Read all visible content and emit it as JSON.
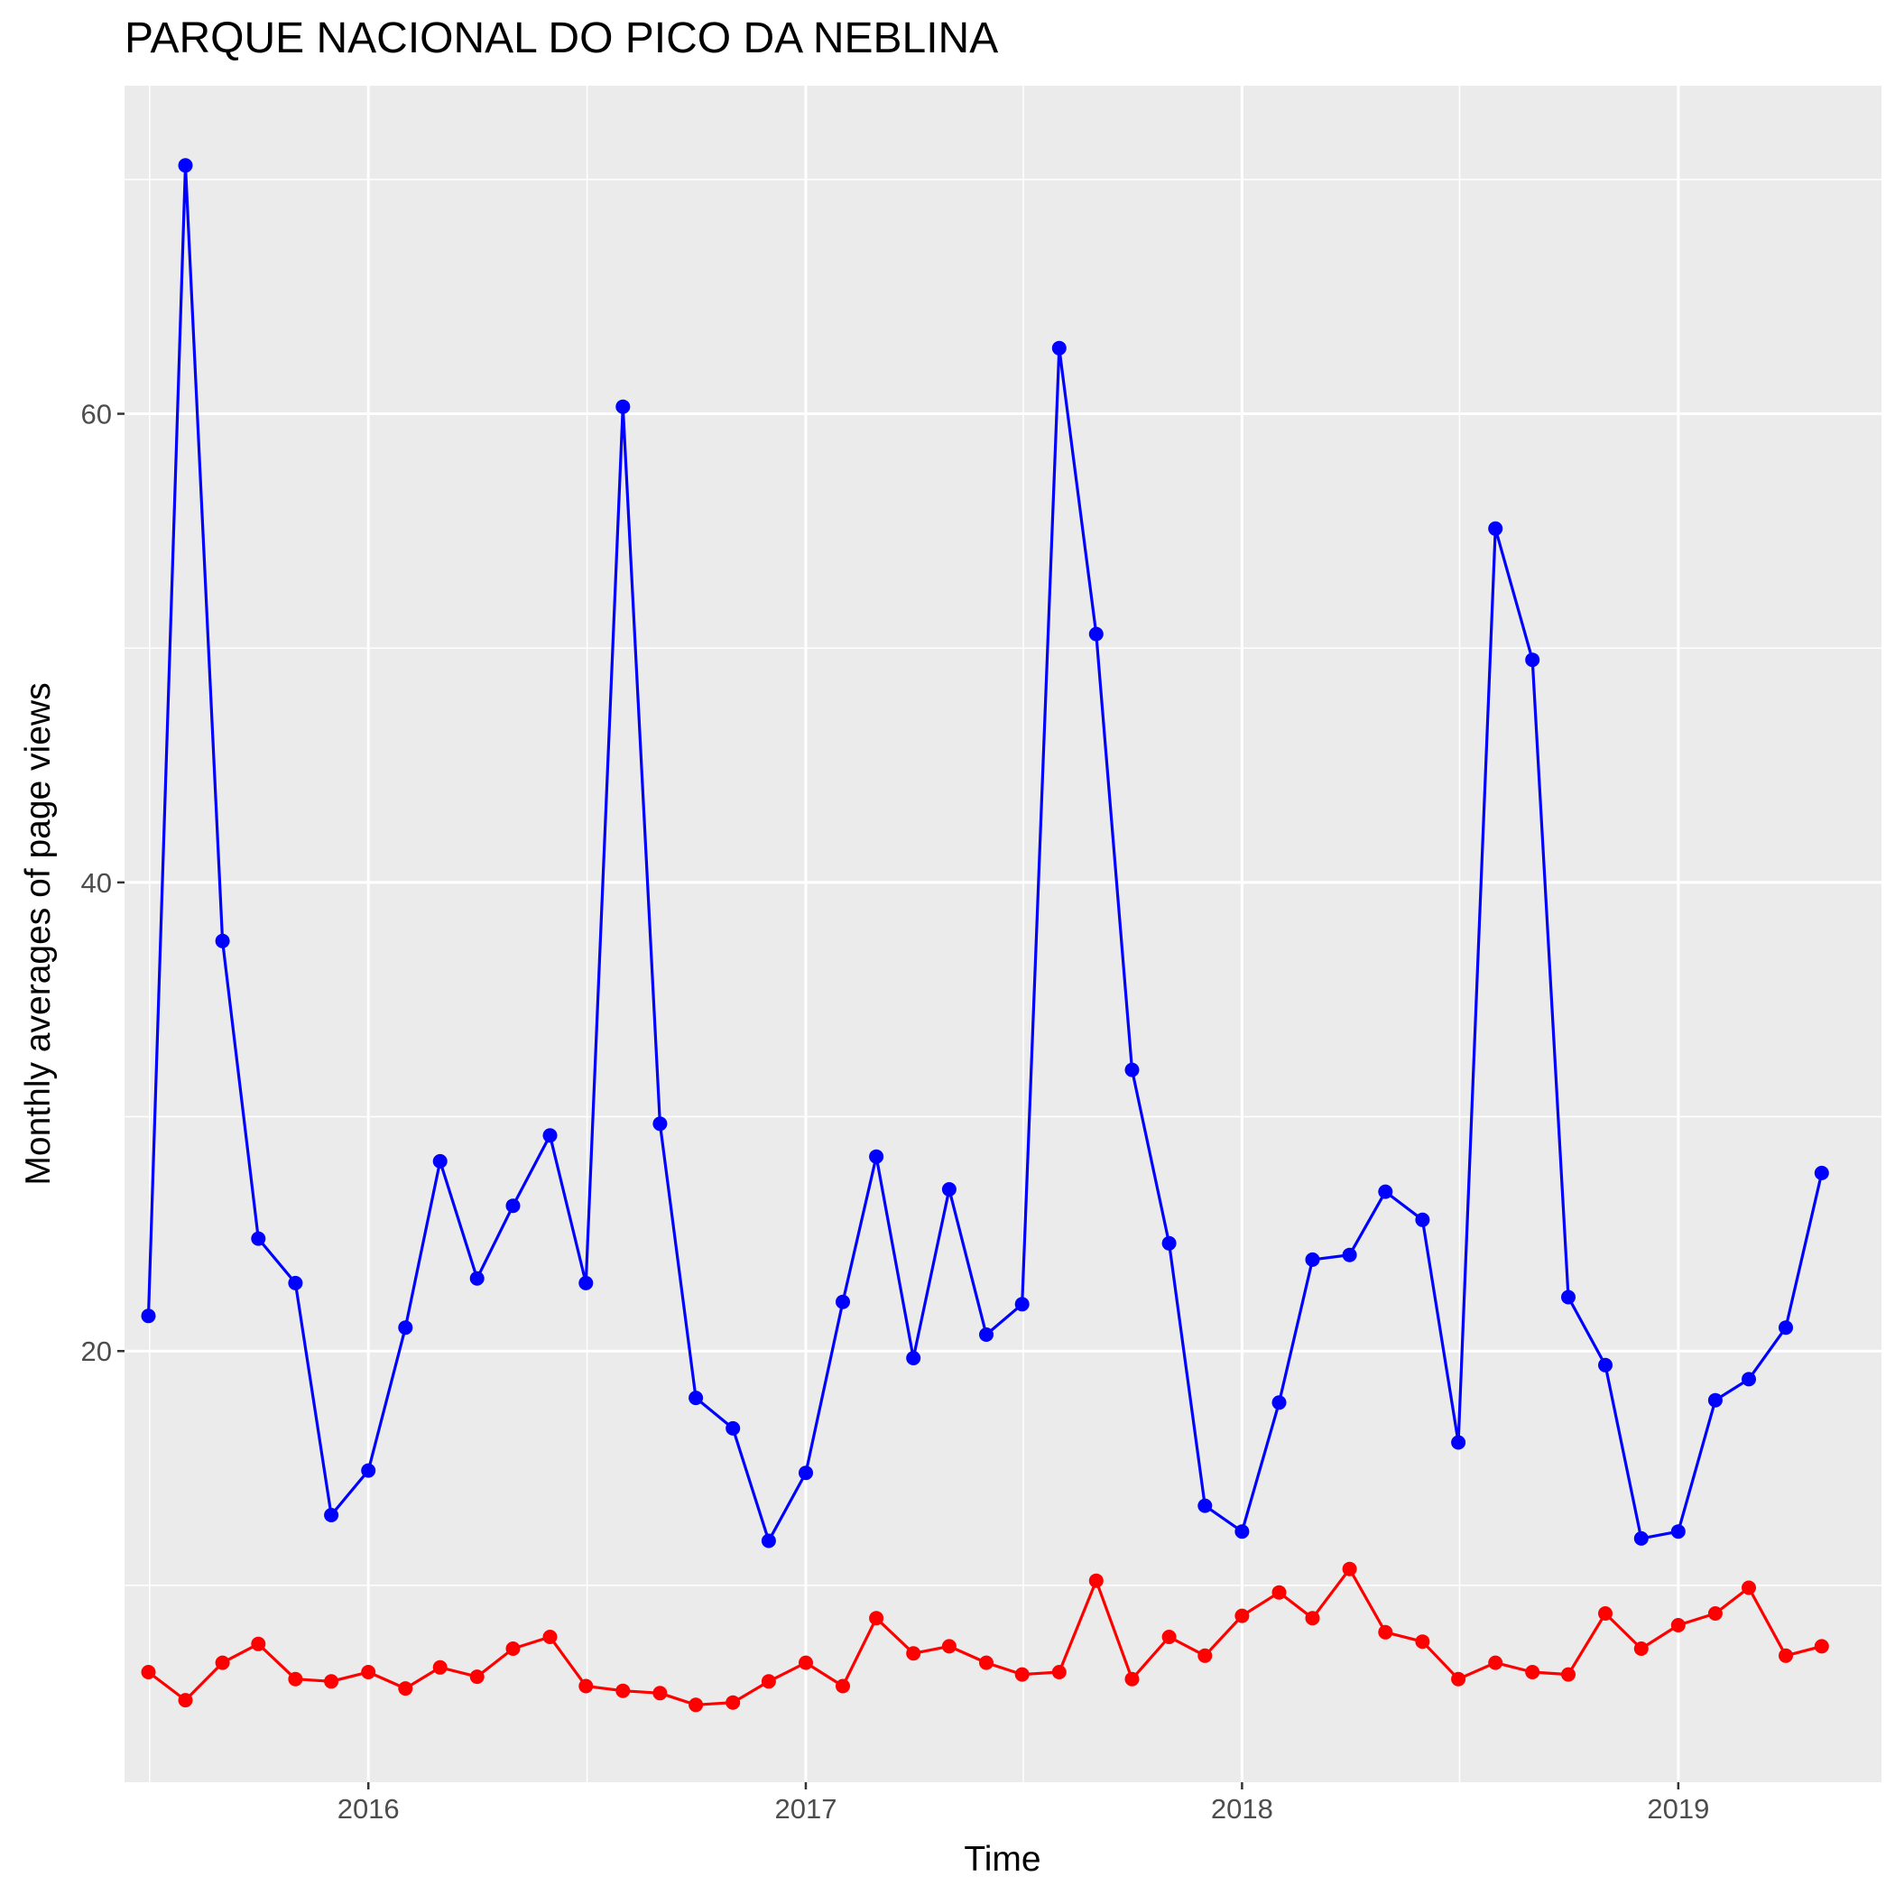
{
  "chart_data": {
    "type": "line",
    "title": "PARQUE NACIONAL DO PICO DA NEBLINA",
    "xlabel": "Time",
    "ylabel": "Monthly averages of page views",
    "x_ticks": [
      "2016",
      "2017",
      "2018",
      "2019"
    ],
    "y_ticks": [
      "20",
      "40",
      "60"
    ],
    "xlim": [
      "2015-06-11",
      "2019-06-20"
    ],
    "ylim": [
      1.6,
      74.0
    ],
    "grid": true,
    "legend": "none",
    "x": [
      "2015-07-01",
      "2015-08-01",
      "2015-09-01",
      "2015-10-01",
      "2015-11-01",
      "2015-12-01",
      "2016-01-01",
      "2016-02-01",
      "2016-03-01",
      "2016-04-01",
      "2016-05-01",
      "2016-06-01",
      "2016-07-01",
      "2016-08-01",
      "2016-09-01",
      "2016-10-01",
      "2016-11-01",
      "2016-12-01",
      "2017-01-01",
      "2017-02-01",
      "2017-03-01",
      "2017-04-01",
      "2017-05-01",
      "2017-06-01",
      "2017-07-01",
      "2017-08-01",
      "2017-09-01",
      "2017-10-01",
      "2017-11-01",
      "2017-12-01",
      "2018-01-01",
      "2018-02-01",
      "2018-03-01",
      "2018-04-01",
      "2018-05-01",
      "2018-06-01",
      "2018-07-01",
      "2018-08-01",
      "2018-09-01",
      "2018-10-01",
      "2018-11-01",
      "2018-12-01",
      "2019-01-01",
      "2019-02-01",
      "2019-03-01",
      "2019-04-01",
      "2019-05-01"
    ],
    "series": [
      {
        "color": "#0000ff",
        "values": [
          21.5,
          70.6,
          37.5,
          24.8,
          22.9,
          13.0,
          14.9,
          21.0,
          28.1,
          23.1,
          26.2,
          29.2,
          22.9,
          60.3,
          29.7,
          18.0,
          16.7,
          11.9,
          14.8,
          22.1,
          28.3,
          19.7,
          26.9,
          20.7,
          22.0,
          62.8,
          50.6,
          32.0,
          24.6,
          13.4,
          12.3,
          17.8,
          23.9,
          24.1,
          26.8,
          25.6,
          16.1,
          55.1,
          49.5,
          22.3,
          19.4,
          12.0,
          12.3,
          17.9,
          18.8,
          21.0,
          27.6
        ]
      },
      {
        "color": "#ff0000",
        "values": [
          6.3,
          5.1,
          6.7,
          7.5,
          6.0,
          5.9,
          6.3,
          5.6,
          6.5,
          6.1,
          7.3,
          7.8,
          5.7,
          5.5,
          5.4,
          4.9,
          5.0,
          5.9,
          6.7,
          5.7,
          8.6,
          7.1,
          7.4,
          6.7,
          6.2,
          6.3,
          10.2,
          6.0,
          7.8,
          7.0,
          8.7,
          9.7,
          8.6,
          10.7,
          8.0,
          7.6,
          6.0,
          6.7,
          6.3,
          6.2,
          8.8,
          7.3,
          8.3,
          8.8,
          9.9,
          7.0,
          7.4
        ]
      }
    ]
  }
}
